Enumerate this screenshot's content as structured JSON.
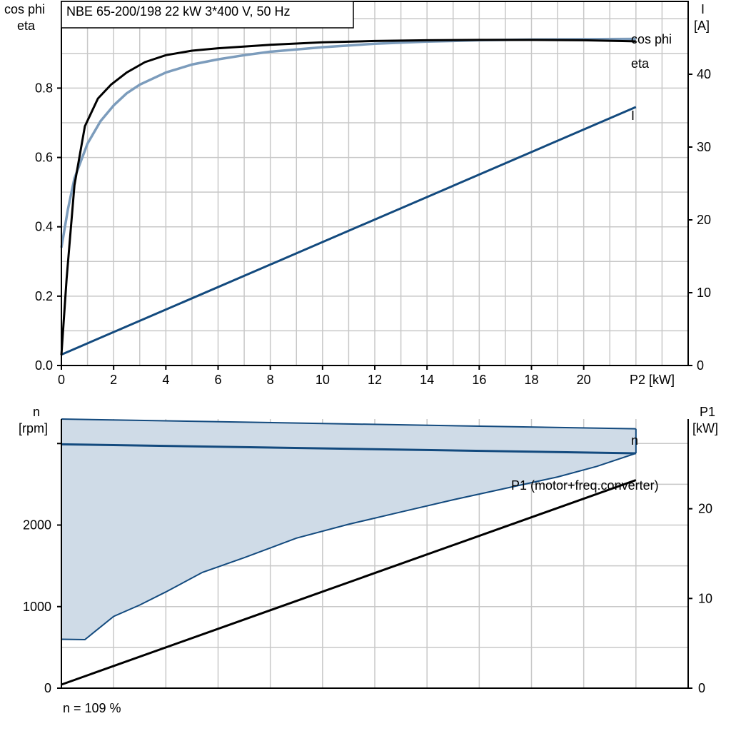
{
  "colors": {
    "eta": "#000000",
    "cos_phi": "#7c9cbc",
    "current": "#134a7e",
    "speed": "#134a7e",
    "speed_band_fill": "#cfdbe7",
    "p1": "#000000",
    "grid": "#c8c8c8"
  },
  "chart_data": [
    {
      "type": "line",
      "title": "NBE 65-200/198   22 kW   3*400 V, 50 Hz",
      "xlabel": "P2 [kW]",
      "ylabel_left": [
        "cos phi",
        "eta"
      ],
      "ylabel_right": [
        "I",
        "[A]"
      ],
      "xlim": [
        0,
        24
      ],
      "ylim_left": [
        0,
        1.05
      ],
      "ylim_right": [
        0,
        50
      ],
      "grid": true,
      "x_ticks": [
        "0",
        "2",
        "4",
        "6",
        "8",
        "10",
        "12",
        "14",
        "16",
        "18",
        "20"
      ],
      "y_left_ticks": [
        "0.0",
        "0.2",
        "0.4",
        "0.6",
        "0.8"
      ],
      "y_right_ticks": [
        "0",
        "10",
        "20",
        "30",
        "40"
      ],
      "series": [
        {
          "name": "eta",
          "axis": "left",
          "x": [
            0,
            0.2,
            0.5,
            0.9,
            1.4,
            1.9,
            2.5,
            3.2,
            4,
            5,
            6,
            8,
            10,
            12,
            14,
            16,
            18,
            20,
            22
          ],
          "values": [
            0.03,
            0.25,
            0.52,
            0.69,
            0.77,
            0.81,
            0.845,
            0.875,
            0.895,
            0.908,
            0.915,
            0.925,
            0.932,
            0.936,
            0.938,
            0.939,
            0.939,
            0.938,
            0.935
          ]
        },
        {
          "name": "cos phi",
          "axis": "left",
          "x": [
            0,
            0.25,
            0.5,
            1,
            1.5,
            2,
            2.5,
            3,
            4,
            5,
            6,
            7,
            8,
            10,
            12,
            14,
            16,
            18,
            20,
            22
          ],
          "values": [
            0.34,
            0.45,
            0.54,
            0.64,
            0.705,
            0.75,
            0.785,
            0.81,
            0.845,
            0.868,
            0.883,
            0.895,
            0.905,
            0.918,
            0.928,
            0.934,
            0.938,
            0.94,
            0.941,
            0.942
          ]
        },
        {
          "name": "I",
          "axis": "right",
          "x": [
            0,
            22
          ],
          "values": [
            1.5,
            35.5
          ]
        }
      ]
    },
    {
      "type": "area",
      "xlabel": "",
      "ylabel_left": [
        "n",
        "[rpm]"
      ],
      "ylabel_right": [
        "P1",
        "[kW]"
      ],
      "xlim": [
        0,
        24
      ],
      "ylim_left": [
        0,
        3300
      ],
      "ylim_right": [
        0,
        30
      ],
      "grid": true,
      "y_left_ticks": [
        "0",
        "1000",
        "2000"
      ],
      "y_right_ticks": [
        "0",
        "10",
        "20"
      ],
      "series": [
        {
          "name": "n",
          "axis": "left",
          "x": [
            0,
            22
          ],
          "values": [
            2990,
            2880
          ]
        },
        {
          "name": "P1 (motor+freq.converter)",
          "axis": "right",
          "x": [
            0,
            22
          ],
          "values": [
            0.4,
            23.2
          ]
        }
      ],
      "band": {
        "upper": {
          "x": [
            0,
            22
          ],
          "values": [
            3300,
            3180
          ]
        },
        "lower": {
          "x": [
            0,
            0.9,
            2,
            3,
            4,
            5.4,
            7,
            9,
            11,
            13,
            15,
            17,
            19,
            20.5,
            22
          ],
          "values": [
            600,
            595,
            880,
            1020,
            1180,
            1420,
            1600,
            1840,
            2010,
            2160,
            2310,
            2450,
            2590,
            2720,
            2880
          ]
        }
      },
      "annotations": [
        "n = 109 %"
      ]
    }
  ]
}
